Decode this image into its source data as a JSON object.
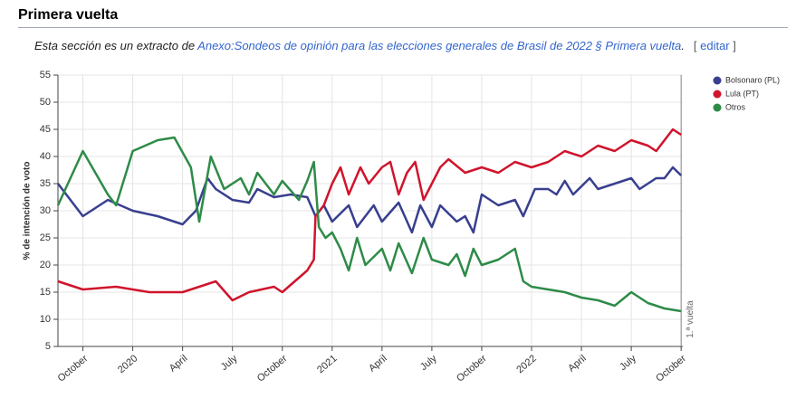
{
  "header": {
    "title": "Primera vuelta",
    "note_prefix": "Esta sección es un extracto de ",
    "link": "Anexo:Sondeos de opinión para las elecciones generales de Brasil de 2022 § Primera vuelta",
    "note_suffix": ".",
    "edit_open": "[ ",
    "edit": "editar",
    "edit_close": " ]"
  },
  "chart_data": {
    "type": "line",
    "y_label": "% de intención de voto",
    "xlim": [
      7.5,
      45.1
    ],
    "ylim": [
      5,
      55
    ],
    "xticks": [
      {
        "value": 9,
        "label": "October"
      },
      {
        "value": 12,
        "label": "2020"
      },
      {
        "value": 15,
        "label": "April"
      },
      {
        "value": 18,
        "label": "July"
      },
      {
        "value": 21,
        "label": "October"
      },
      {
        "value": 24,
        "label": "2021"
      },
      {
        "value": 27,
        "label": "April"
      },
      {
        "value": 30,
        "label": "July"
      },
      {
        "value": 33,
        "label": "October"
      },
      {
        "value": 36,
        "label": "2022"
      },
      {
        "value": 39,
        "label": "April"
      },
      {
        "value": 42,
        "label": "July"
      },
      {
        "value": 45,
        "label": "October"
      }
    ],
    "yticks": [
      5,
      10,
      15,
      20,
      25,
      30,
      35,
      40,
      45,
      50,
      55
    ],
    "grid": true,
    "legend": "top-right",
    "annotation": {
      "text": "1.ª vuelta",
      "x": 45
    },
    "series": [
      {
        "name": "Bolsonaro (PL)",
        "color": "#383f8f",
        "x": [
          7.5,
          9,
          10.5,
          12,
          13.5,
          15,
          15.8,
          16.5,
          17,
          18,
          19,
          19.5,
          20.5,
          21.5,
          22.5,
          23,
          23.5,
          24,
          25,
          25.5,
          26.5,
          27,
          28,
          28.8,
          29.3,
          30,
          30.5,
          31.5,
          32,
          32.5,
          33,
          34,
          35,
          35.5,
          36.2,
          37,
          37.5,
          38,
          38.5,
          39.5,
          40,
          41,
          42,
          42.5,
          43.5,
          44,
          44.5,
          45
        ],
        "values": [
          35,
          29,
          32,
          30,
          29,
          27.5,
          30,
          36,
          34,
          32,
          31.5,
          34,
          32.5,
          33,
          32.5,
          29,
          31,
          28,
          31,
          27,
          31,
          28,
          31.5,
          26,
          31,
          27,
          31,
          28,
          29,
          26,
          33,
          31,
          32,
          29,
          34,
          34,
          33,
          35.5,
          33,
          36,
          34,
          35,
          36,
          34,
          36,
          36,
          38,
          36.5
        ]
      },
      {
        "name": "Lula (PT)",
        "color": "#d0142c",
        "x": [
          7.5,
          9,
          11,
          13,
          15,
          16,
          17,
          18,
          19,
          20.5,
          21,
          22.5,
          22.9,
          23,
          23.5,
          24,
          24.5,
          25,
          25.7,
          26.2,
          27,
          27.5,
          28,
          28.5,
          29,
          29.5,
          30.5,
          31,
          32,
          33,
          34,
          35,
          36,
          37,
          38,
          39,
          40,
          41,
          42,
          43,
          43.5,
          44,
          44.5,
          45
        ],
        "values": [
          17,
          15.5,
          16,
          15,
          15,
          16,
          17,
          13.5,
          15,
          16,
          15,
          19,
          21,
          29,
          31,
          35,
          38,
          33,
          38,
          35,
          38,
          39,
          33,
          37,
          39,
          32,
          38,
          39.5,
          37,
          38,
          37,
          39,
          38,
          39,
          41,
          40,
          42,
          41,
          43,
          42,
          41,
          43,
          45,
          44
        ]
      },
      {
        "name": "Otros",
        "color": "#2e8b48",
        "x": [
          7.5,
          9,
          10.5,
          11,
          12,
          13.5,
          14.5,
          15.5,
          16,
          16.7,
          17.5,
          18.5,
          19,
          19.5,
          20.5,
          21,
          22,
          22.5,
          22.9,
          23.2,
          23.6,
          24,
          24.5,
          25,
          25.5,
          26,
          27,
          27.5,
          28,
          28.8,
          29.5,
          30,
          31,
          31.5,
          32,
          32.5,
          33,
          34,
          35,
          35.5,
          36,
          37,
          38,
          39,
          40,
          41,
          42,
          43,
          44,
          45
        ],
        "values": [
          31,
          41,
          33,
          31,
          41,
          43,
          43.5,
          38,
          28,
          40,
          34,
          36,
          33,
          37,
          33,
          35.5,
          32,
          35.5,
          39,
          27,
          25,
          26,
          23,
          19,
          25,
          20,
          23,
          19,
          24,
          18.5,
          25,
          21,
          20,
          22,
          18,
          23,
          20,
          21,
          23,
          17,
          16,
          15.5,
          15,
          14,
          13.5,
          12.5,
          15,
          13,
          12,
          11.5
        ]
      }
    ]
  }
}
